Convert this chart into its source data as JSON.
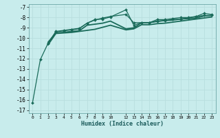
{
  "xlabel": "Humidex (Indice chaleur)",
  "background_color": "#c8ecec",
  "grid_color": "#b8dede",
  "line_color": "#1a6b5a",
  "xlim": [
    -0.5,
    23.5
  ],
  "ylim": [
    -17.3,
    -6.7
  ],
  "xticks": [
    0,
    1,
    2,
    3,
    4,
    5,
    6,
    7,
    8,
    9,
    10,
    12,
    13,
    14,
    15,
    16,
    17,
    18,
    19,
    20,
    21,
    22,
    23
  ],
  "yticks": [
    -7,
    -8,
    -9,
    -10,
    -11,
    -12,
    -13,
    -14,
    -15,
    -16,
    -17
  ],
  "series": [
    {
      "x": [
        0,
        1,
        2,
        3,
        4,
        5,
        6,
        7,
        8,
        9,
        10,
        12,
        13,
        14,
        15,
        16,
        17,
        18,
        19,
        20,
        21,
        22,
        23
      ],
      "y": [
        -16.3,
        -12.1,
        -10.5,
        -9.35,
        -9.25,
        -9.15,
        -9.05,
        -8.55,
        -8.25,
        -8.05,
        -7.9,
        -7.7,
        -8.5,
        -8.5,
        -8.5,
        -8.4,
        -8.3,
        -8.2,
        -8.15,
        -8.05,
        -7.9,
        -7.8,
        -7.8
      ],
      "marker": "D",
      "markersize": 2.0,
      "linewidth": 0.9
    },
    {
      "x": [
        2,
        3,
        4,
        5,
        6,
        7,
        8,
        9,
        10,
        12,
        13,
        14,
        15,
        16,
        17,
        18,
        19,
        20,
        21,
        22,
        23
      ],
      "y": [
        -10.5,
        -9.4,
        -9.3,
        -9.2,
        -9.1,
        -8.55,
        -8.2,
        -8.15,
        -7.95,
        -7.25,
        -8.75,
        -8.5,
        -8.5,
        -8.2,
        -8.2,
        -8.1,
        -8.0,
        -8.0,
        -7.9,
        -7.6,
        -7.7
      ],
      "marker": "D",
      "markersize": 2.0,
      "linewidth": 0.9
    },
    {
      "x": [
        2,
        3,
        4,
        5,
        6,
        7,
        8,
        9,
        10,
        12,
        13,
        14,
        15,
        16,
        17,
        18,
        19,
        20,
        21,
        22,
        23
      ],
      "y": [
        -10.4,
        -9.5,
        -9.45,
        -9.35,
        -9.3,
        -8.75,
        -8.65,
        -8.55,
        -8.35,
        -9.1,
        -9.0,
        -8.5,
        -8.5,
        -8.35,
        -8.3,
        -8.25,
        -8.15,
        -8.1,
        -8.05,
        -7.85,
        -7.8
      ],
      "marker": null,
      "markersize": 0,
      "linewidth": 1.3
    },
    {
      "x": [
        2,
        3,
        4,
        5,
        6,
        7,
        8,
        9,
        10,
        12,
        13,
        14,
        15,
        16,
        17,
        18,
        19,
        20,
        21,
        22,
        23
      ],
      "y": [
        -10.65,
        -9.55,
        -9.5,
        -9.45,
        -9.35,
        -9.25,
        -9.15,
        -8.95,
        -8.75,
        -9.2,
        -9.1,
        -8.7,
        -8.7,
        -8.6,
        -8.55,
        -8.45,
        -8.35,
        -8.25,
        -8.15,
        -8.05,
        -7.95
      ],
      "marker": null,
      "markersize": 0,
      "linewidth": 1.3
    }
  ]
}
